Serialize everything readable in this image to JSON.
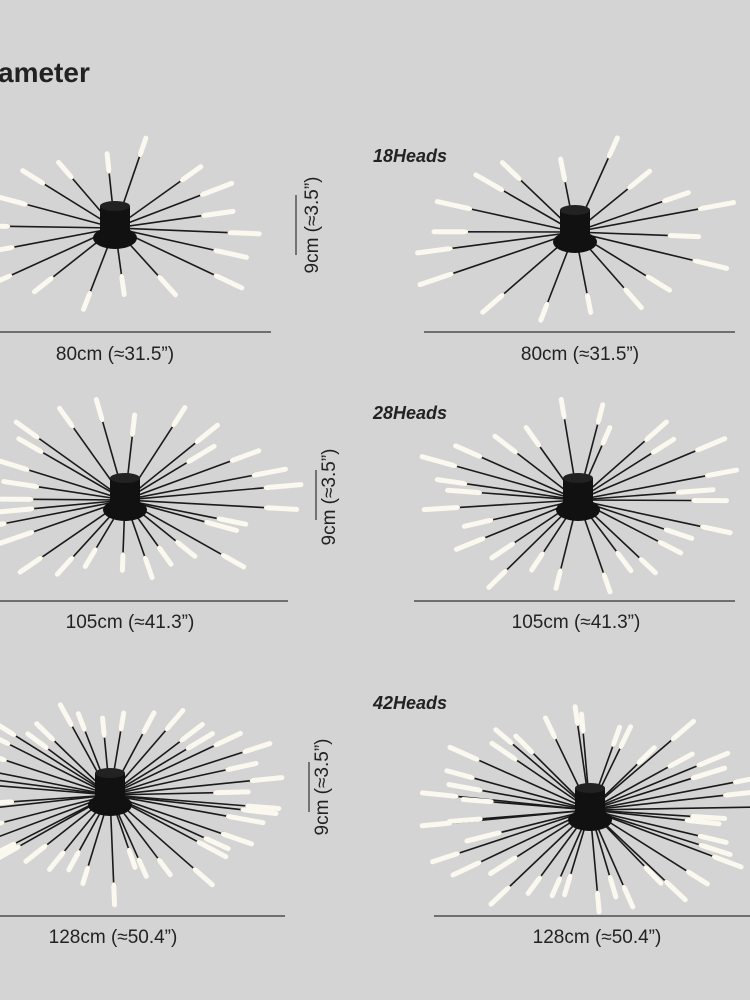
{
  "header": {
    "title": "ameter"
  },
  "rows": [
    {
      "heads": "18Heads",
      "height": "9cm (≈3.5”)",
      "left_width": "80cm (≈31.5”)",
      "right_width": "80cm (≈31.5”)"
    },
    {
      "heads": "28Heads",
      "height": "9cm (≈3.5”)",
      "left_width": "105cm (≈41.3”)",
      "right_width": "105cm (≈41.3”)"
    },
    {
      "heads": "42Heads",
      "height": "9cm (≈3.5”)",
      "left_width": "128cm (≈50.4”)",
      "right_width": "128cm (≈50.4”)"
    }
  ]
}
